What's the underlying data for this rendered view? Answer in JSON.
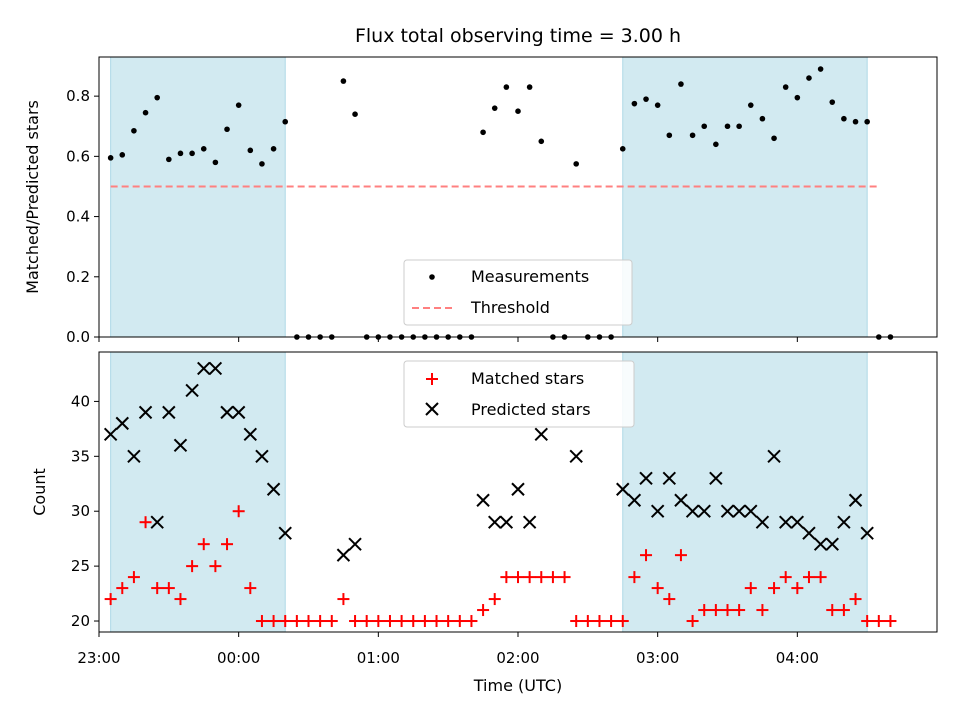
{
  "chart_data": {
    "title": "Flux total observing time = 3.00 h",
    "xlabel": "Time (UTC)",
    "x_ticks": [
      "23:00",
      "00:00",
      "01:00",
      "02:00",
      "03:00",
      "04:00"
    ],
    "colors": {
      "shade": "#add8e6",
      "measurement": "#000000",
      "threshold": "#ff8080",
      "matched": "#ff0000",
      "predicted": "#000000"
    },
    "shaded_intervals": [
      [
        "23:05",
        "00:20"
      ],
      [
        "02:45",
        "04:30"
      ]
    ],
    "panels": [
      {
        "type": "scatter",
        "ylabel": "Matched/Predicted stars",
        "ylim": [
          0,
          0.93
        ],
        "y_ticks": [
          0.0,
          0.2,
          0.4,
          0.6,
          0.8
        ],
        "legend_position": "bottom-center",
        "threshold": {
          "name": "Threshold",
          "y": 0.5,
          "x_range": [
            "23:05",
            "04:35"
          ]
        },
        "series": [
          {
            "name": "Measurements",
            "points": [
              [
                "23:05",
                0.595
              ],
              [
                "23:10",
                0.605
              ],
              [
                "23:15",
                0.685
              ],
              [
                "23:20",
                0.745
              ],
              [
                "23:25",
                0.795
              ],
              [
                "23:30",
                0.59
              ],
              [
                "23:35",
                0.61
              ],
              [
                "23:40",
                0.61
              ],
              [
                "23:45",
                0.625
              ],
              [
                "23:50",
                0.58
              ],
              [
                "23:55",
                0.69
              ],
              [
                "00:00",
                0.77
              ],
              [
                "00:05",
                0.62
              ],
              [
                "00:10",
                0.575
              ],
              [
                "00:15",
                0.625
              ],
              [
                "00:20",
                0.715
              ],
              [
                "00:25",
                0.0
              ],
              [
                "00:30",
                0.0
              ],
              [
                "00:35",
                0.0
              ],
              [
                "00:40",
                0.0
              ],
              [
                "00:45",
                0.85
              ],
              [
                "00:50",
                0.74
              ],
              [
                "00:55",
                0.0
              ],
              [
                "01:00",
                0.0
              ],
              [
                "01:05",
                0.0
              ],
              [
                "01:10",
                0.0
              ],
              [
                "01:15",
                0.0
              ],
              [
                "01:20",
                0.0
              ],
              [
                "01:25",
                0.0
              ],
              [
                "01:30",
                0.0
              ],
              [
                "01:35",
                0.0
              ],
              [
                "01:40",
                0.0
              ],
              [
                "01:45",
                0.68
              ],
              [
                "01:50",
                0.76
              ],
              [
                "01:55",
                0.83
              ],
              [
                "02:00",
                0.75
              ],
              [
                "02:05",
                0.83
              ],
              [
                "02:10",
                0.65
              ],
              [
                "02:15",
                0.0
              ],
              [
                "02:20",
                0.0
              ],
              [
                "02:25",
                0.575
              ],
              [
                "02:30",
                0.0
              ],
              [
                "02:35",
                0.0
              ],
              [
                "02:40",
                0.0
              ],
              [
                "02:45",
                0.625
              ],
              [
                "02:50",
                0.775
              ],
              [
                "02:55",
                0.79
              ],
              [
                "03:00",
                0.77
              ],
              [
                "03:05",
                0.67
              ],
              [
                "03:10",
                0.84
              ],
              [
                "03:15",
                0.67
              ],
              [
                "03:20",
                0.7
              ],
              [
                "03:25",
                0.64
              ],
              [
                "03:30",
                0.7
              ],
              [
                "03:35",
                0.7
              ],
              [
                "03:40",
                0.77
              ],
              [
                "03:45",
                0.725
              ],
              [
                "03:50",
                0.66
              ],
              [
                "03:55",
                0.83
              ],
              [
                "04:00",
                0.795
              ],
              [
                "04:05",
                0.86
              ],
              [
                "04:10",
                0.89
              ],
              [
                "04:15",
                0.78
              ],
              [
                "04:20",
                0.725
              ],
              [
                "04:25",
                0.715
              ],
              [
                "04:30",
                0.715
              ],
              [
                "04:35",
                0.0
              ],
              [
                "04:40",
                0.0
              ]
            ]
          }
        ]
      },
      {
        "type": "scatter",
        "ylabel": "Count",
        "ylim": [
          19,
          44.5
        ],
        "y_ticks": [
          20,
          25,
          30,
          35,
          40
        ],
        "legend_position": "top-center",
        "series": [
          {
            "name": "Matched stars",
            "marker": "plus",
            "points": [
              [
                "23:05",
                22
              ],
              [
                "23:10",
                23
              ],
              [
                "23:15",
                24
              ],
              [
                "23:20",
                29
              ],
              [
                "23:25",
                23
              ],
              [
                "23:30",
                23
              ],
              [
                "23:35",
                22
              ],
              [
                "23:40",
                25
              ],
              [
                "23:45",
                27
              ],
              [
                "23:50",
                25
              ],
              [
                "23:55",
                27
              ],
              [
                "00:00",
                30
              ],
              [
                "00:05",
                23
              ],
              [
                "00:10",
                20
              ],
              [
                "00:15",
                20
              ],
              [
                "00:20",
                20
              ],
              [
                "00:25",
                20
              ],
              [
                "00:30",
                20
              ],
              [
                "00:35",
                20
              ],
              [
                "00:40",
                20
              ],
              [
                "00:45",
                22
              ],
              [
                "00:50",
                20
              ],
              [
                "00:55",
                20
              ],
              [
                "01:00",
                20
              ],
              [
                "01:05",
                20
              ],
              [
                "01:10",
                20
              ],
              [
                "01:15",
                20
              ],
              [
                "01:20",
                20
              ],
              [
                "01:25",
                20
              ],
              [
                "01:30",
                20
              ],
              [
                "01:35",
                20
              ],
              [
                "01:40",
                20
              ],
              [
                "01:45",
                21
              ],
              [
                "01:50",
                22
              ],
              [
                "01:55",
                24
              ],
              [
                "02:00",
                24
              ],
              [
                "02:05",
                24
              ],
              [
                "02:10",
                24
              ],
              [
                "02:15",
                24
              ],
              [
                "02:20",
                24
              ],
              [
                "02:25",
                20
              ],
              [
                "02:30",
                20
              ],
              [
                "02:35",
                20
              ],
              [
                "02:40",
                20
              ],
              [
                "02:45",
                20
              ],
              [
                "02:50",
                24
              ],
              [
                "02:55",
                26
              ],
              [
                "03:00",
                23
              ],
              [
                "03:05",
                22
              ],
              [
                "03:10",
                26
              ],
              [
                "03:15",
                20
              ],
              [
                "03:20",
                21
              ],
              [
                "03:25",
                21
              ],
              [
                "03:30",
                21
              ],
              [
                "03:35",
                21
              ],
              [
                "03:40",
                23
              ],
              [
                "03:45",
                21
              ],
              [
                "03:50",
                23
              ],
              [
                "03:55",
                24
              ],
              [
                "04:00",
                23
              ],
              [
                "04:05",
                24
              ],
              [
                "04:10",
                24
              ],
              [
                "04:15",
                21
              ],
              [
                "04:20",
                21
              ],
              [
                "04:25",
                22
              ],
              [
                "04:30",
                20
              ],
              [
                "04:35",
                20
              ],
              [
                "04:40",
                20
              ]
            ]
          },
          {
            "name": "Predicted stars",
            "marker": "x",
            "points": [
              [
                "23:05",
                37
              ],
              [
                "23:10",
                38
              ],
              [
                "23:15",
                35
              ],
              [
                "23:20",
                39
              ],
              [
                "23:25",
                29
              ],
              [
                "23:30",
                39
              ],
              [
                "23:35",
                36
              ],
              [
                "23:40",
                41
              ],
              [
                "23:45",
                43
              ],
              [
                "23:50",
                43
              ],
              [
                "23:55",
                39
              ],
              [
                "00:00",
                39
              ],
              [
                "00:05",
                37
              ],
              [
                "00:10",
                35
              ],
              [
                "00:15",
                32
              ],
              [
                "00:20",
                28
              ],
              [
                "00:45",
                26
              ],
              [
                "00:50",
                27
              ],
              [
                "01:45",
                31
              ],
              [
                "01:50",
                29
              ],
              [
                "01:55",
                29
              ],
              [
                "02:00",
                32
              ],
              [
                "02:05",
                29
              ],
              [
                "02:10",
                37
              ],
              [
                "02:25",
                35
              ],
              [
                "02:45",
                32
              ],
              [
                "02:50",
                31
              ],
              [
                "02:55",
                33
              ],
              [
                "03:00",
                30
              ],
              [
                "03:05",
                33
              ],
              [
                "03:10",
                31
              ],
              [
                "03:15",
                30
              ],
              [
                "03:20",
                30
              ],
              [
                "03:25",
                33
              ],
              [
                "03:30",
                30
              ],
              [
                "03:35",
                30
              ],
              [
                "03:40",
                30
              ],
              [
                "03:45",
                29
              ],
              [
                "03:50",
                35
              ],
              [
                "03:55",
                29
              ],
              [
                "04:00",
                29
              ],
              [
                "04:05",
                28
              ],
              [
                "04:10",
                27
              ],
              [
                "04:15",
                27
              ],
              [
                "04:20",
                29
              ],
              [
                "04:25",
                31
              ],
              [
                "04:30",
                28
              ]
            ]
          }
        ]
      }
    ]
  }
}
